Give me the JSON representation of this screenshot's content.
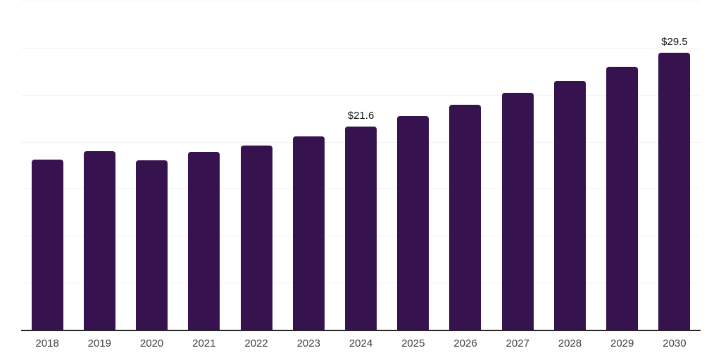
{
  "chart_data": {
    "type": "bar",
    "categories": [
      "2018",
      "2019",
      "2020",
      "2021",
      "2022",
      "2023",
      "2024",
      "2025",
      "2026",
      "2027",
      "2028",
      "2029",
      "2030"
    ],
    "values": [
      18.1,
      19.0,
      18.0,
      18.9,
      19.6,
      20.6,
      21.6,
      22.7,
      23.9,
      25.2,
      26.5,
      28.0,
      29.5
    ],
    "data_labels": [
      "",
      "",
      "",
      "",
      "",
      "",
      "$21.6",
      "",
      "",
      "",
      "",
      "",
      "$29.5"
    ],
    "title": "",
    "xlabel": "",
    "ylabel": "",
    "ylim": [
      0,
      35
    ],
    "gridline_step": 5,
    "grid": "horizontal-only",
    "y_tick_labels_shown": false,
    "legend": "none",
    "colors": {
      "bar": "#36124e",
      "gridline": "#f1f1f1",
      "axis_line": "#262626",
      "x_label_text": "#3f3f3f",
      "data_label_text": "#111111",
      "background": "#ffffff"
    }
  }
}
